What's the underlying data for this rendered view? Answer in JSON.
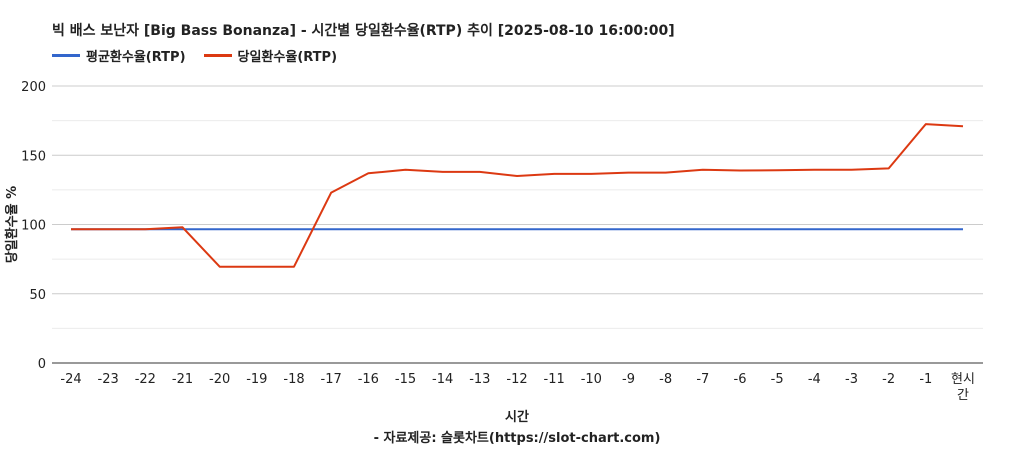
{
  "title": "빅 배스 보난자 [Big Bass Bonanza] - 시간별 당일환수율(RTP) 추이 [2025-08-10 16:00:00]",
  "source": "- 자료제공: 슬롯차트(https://slot-chart.com)",
  "chart_data": {
    "type": "line",
    "title": "빅 배스 보난자 [Big Bass Bonanza] - 시간별 당일환수율(RTP) 추이 [2025-08-10 16:00:00]",
    "xlabel": "시간",
    "ylabel": "당일환수율 %",
    "categories": [
      "-24",
      "-23",
      "-22",
      "-21",
      "-20",
      "-19",
      "-18",
      "-17",
      "-16",
      "-15",
      "-14",
      "-13",
      "-12",
      "-11",
      "-10",
      "-9",
      "-8",
      "-7",
      "-6",
      "-5",
      "-4",
      "-3",
      "-2",
      "-1",
      "현시간"
    ],
    "y_ticks": [
      0,
      50,
      100,
      150,
      200
    ],
    "ylim": [
      0,
      200
    ],
    "grid": true,
    "legend_position": "top-left",
    "series": [
      {
        "name": "평균환수율(RTP)",
        "color": "#3366cc",
        "values": [
          96.5,
          96.5,
          96.5,
          96.5,
          96.5,
          96.5,
          96.5,
          96.5,
          96.5,
          96.5,
          96.5,
          96.5,
          96.5,
          96.5,
          96.5,
          96.5,
          96.5,
          96.5,
          96.5,
          96.5,
          96.5,
          96.5,
          96.5,
          96.5,
          96.5
        ]
      },
      {
        "name": "당일환수율(RTP)",
        "color": "#dc3912",
        "values": [
          96.5,
          96.5,
          96.5,
          98,
          69.5,
          69.5,
          69.5,
          123,
          137,
          139.5,
          138,
          138,
          135,
          136.5,
          136.5,
          137.5,
          137.5,
          139.5,
          139,
          139.2,
          139.5,
          139.5,
          140.5,
          172.5,
          171
        ]
      }
    ]
  }
}
